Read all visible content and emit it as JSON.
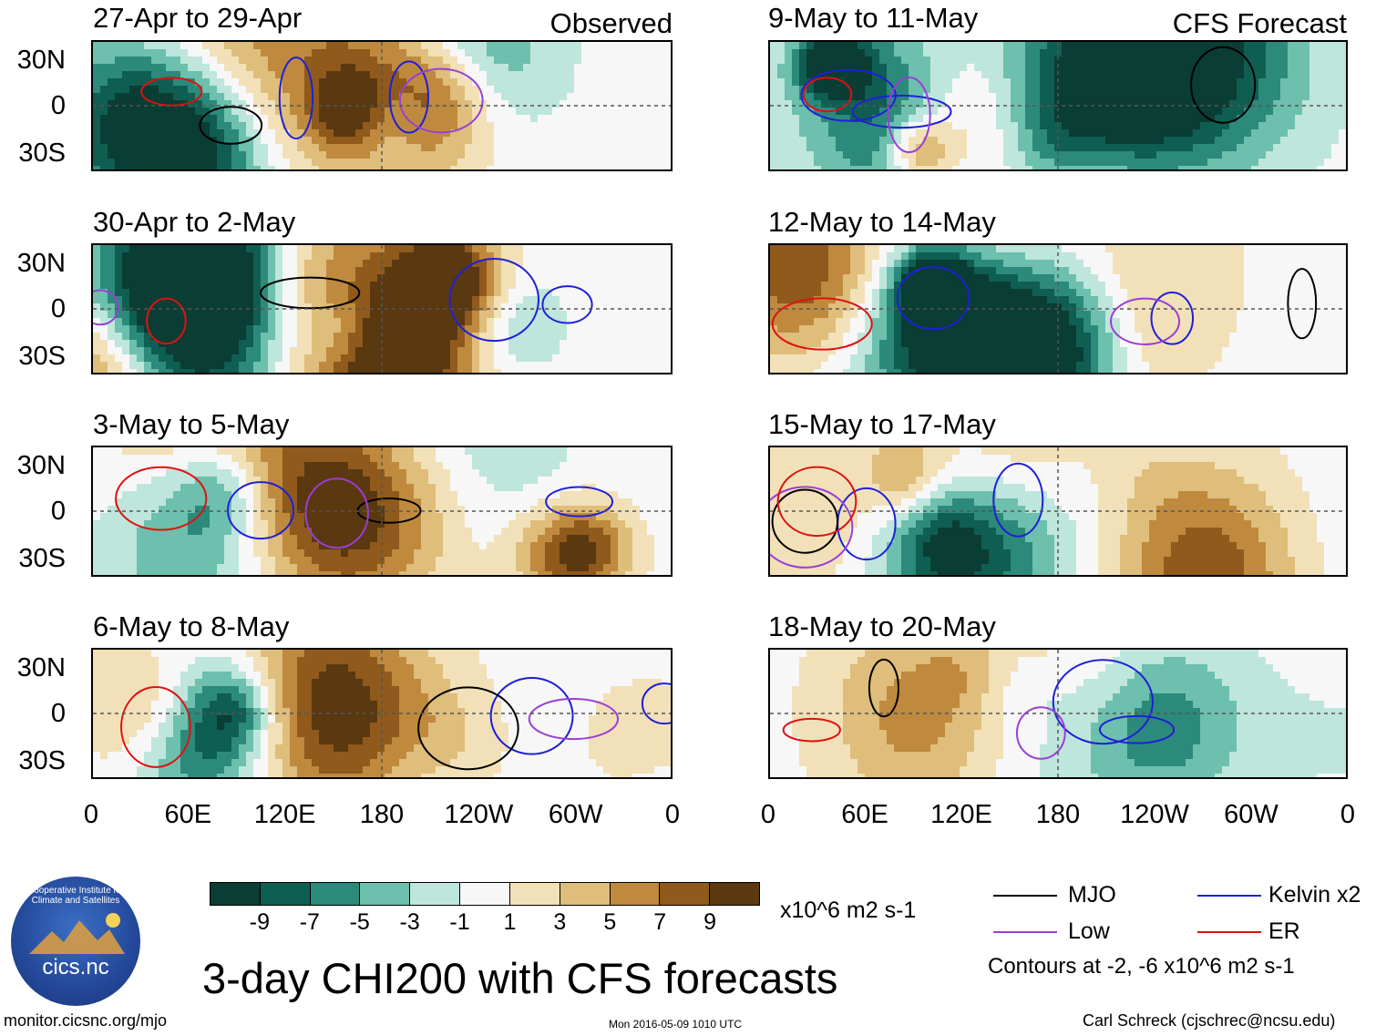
{
  "col_titles": {
    "observed": "Observed",
    "forecast": "CFS Forecast"
  },
  "panels": [
    {
      "title": "27-Apr to 29-Apr",
      "column": "observed"
    },
    {
      "title": "30-Apr to 2-May",
      "column": "observed"
    },
    {
      "title": "3-May to 5-May",
      "column": "observed"
    },
    {
      "title": "6-May to 8-May",
      "column": "observed"
    },
    {
      "title": "9-May to 11-May",
      "column": "forecast"
    },
    {
      "title": "12-May to 14-May",
      "column": "forecast"
    },
    {
      "title": "15-May to 17-May",
      "column": "forecast"
    },
    {
      "title": "18-May to 20-May",
      "column": "forecast"
    }
  ],
  "chart_data": {
    "type": "heatmap",
    "title": "3-day CHI200 with CFS forecasts",
    "xlabel": "",
    "ylabel": "",
    "lat_ticks": [
      "30N",
      "0",
      "30S"
    ],
    "lon_ticks": [
      "0",
      "60E",
      "120E",
      "180",
      "120W",
      "60W",
      "0"
    ],
    "colorbar": {
      "labels": [
        "-9",
        "-7",
        "-5",
        "-3",
        "-1",
        "1",
        "3",
        "5",
        "7",
        "9"
      ],
      "colors": [
        "#0a3d33",
        "#0f5e52",
        "#2c8a7a",
        "#6cc0ad",
        "#bfe6dc",
        "#f7f7f7",
        "#f2e1b8",
        "#dfbd7a",
        "#bf8a3e",
        "#8f5a1c",
        "#5a3810"
      ],
      "units": "x10^6 m2 s-1"
    },
    "legend": [
      {
        "name": "MJO",
        "color": "#000000"
      },
      {
        "name": "Kelvin x2",
        "color": "#1f1fd8"
      },
      {
        "name": "Low",
        "color": "#9a3fd6"
      },
      {
        "name": "ER",
        "color": "#e01010"
      }
    ],
    "contour_note": "Contours at -2, -6 x10^6 m2 s-1"
  },
  "footer": {
    "url": "monitor.cicsnc.org/mjo",
    "timestamp": "Mon 2016-05-09 1010 UTC",
    "author": "Carl Schreck (cjschrec@ncsu.edu)"
  },
  "logo": {
    "text": "cics.nc",
    "arc_text": "Cooperative Institute for Climate and Satellites"
  }
}
